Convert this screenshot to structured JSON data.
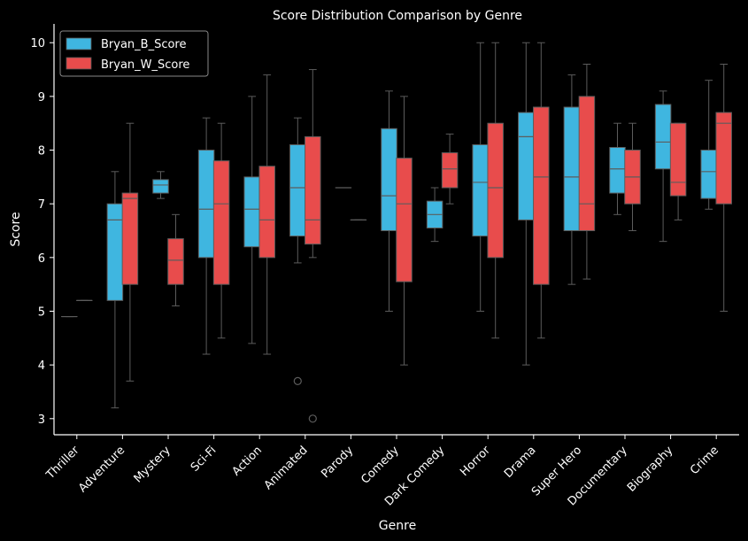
{
  "chart_data": {
    "type": "box",
    "title": "Score Distribution Comparison by Genre",
    "xlabel": "Genre",
    "ylabel": "Score",
    "ylim": [
      2.7,
      10.35
    ],
    "yticks": [
      3,
      4,
      5,
      6,
      7,
      8,
      9,
      10
    ],
    "grid": false,
    "legend_position": "top-left",
    "categories": [
      "Thriller",
      "Adventure",
      "Mystery",
      "Sci-Fi",
      "Action",
      "Animated",
      "Parody",
      "Comedy",
      "Dark Comedy",
      "Horror",
      "Drama",
      "Super Hero",
      "Documentary",
      "Biography",
      "Crime"
    ],
    "series": [
      {
        "name": "Bryan_B_Score",
        "color": "#3fb6e0",
        "boxes": [
          {
            "min": 4.9,
            "q1": 4.9,
            "median": 4.9,
            "q3": 4.9,
            "max": 4.9,
            "outliers": []
          },
          {
            "min": 3.2,
            "q1": 5.2,
            "median": 6.7,
            "q3": 7.0,
            "max": 7.6,
            "outliers": []
          },
          {
            "min": 7.1,
            "q1": 7.2,
            "median": 7.35,
            "q3": 7.45,
            "max": 7.6,
            "outliers": []
          },
          {
            "min": 4.2,
            "q1": 6.0,
            "median": 6.9,
            "q3": 8.0,
            "max": 8.6,
            "outliers": []
          },
          {
            "min": 4.4,
            "q1": 6.2,
            "median": 6.9,
            "q3": 7.5,
            "max": 9.0,
            "outliers": []
          },
          {
            "min": 5.9,
            "q1": 6.4,
            "median": 7.3,
            "q3": 8.1,
            "max": 8.6,
            "outliers": [
              3.7
            ]
          },
          {
            "min": 7.3,
            "q1": 7.3,
            "median": 7.3,
            "q3": 7.3,
            "max": 7.3,
            "outliers": []
          },
          {
            "min": 5.0,
            "q1": 6.5,
            "median": 7.15,
            "q3": 8.4,
            "max": 9.1,
            "outliers": []
          },
          {
            "min": 6.3,
            "q1": 6.55,
            "median": 6.8,
            "q3": 7.05,
            "max": 7.3,
            "outliers": []
          },
          {
            "min": 5.0,
            "q1": 6.4,
            "median": 7.4,
            "q3": 8.1,
            "max": 10.0,
            "outliers": []
          },
          {
            "min": 4.0,
            "q1": 6.7,
            "median": 8.25,
            "q3": 8.7,
            "max": 10.0,
            "outliers": []
          },
          {
            "min": 5.5,
            "q1": 6.5,
            "median": 7.5,
            "q3": 8.8,
            "max": 9.4,
            "outliers": []
          },
          {
            "min": 6.8,
            "q1": 7.2,
            "median": 7.65,
            "q3": 8.05,
            "max": 8.5,
            "outliers": []
          },
          {
            "min": 6.3,
            "q1": 7.65,
            "median": 8.15,
            "q3": 8.85,
            "max": 9.1,
            "outliers": []
          },
          {
            "min": 6.9,
            "q1": 7.1,
            "median": 7.6,
            "q3": 8.0,
            "max": 9.3,
            "outliers": []
          }
        ]
      },
      {
        "name": "Bryan_W_Score",
        "color": "#e84c4c",
        "boxes": [
          {
            "min": 5.2,
            "q1": 5.2,
            "median": 5.2,
            "q3": 5.2,
            "max": 5.2,
            "outliers": []
          },
          {
            "min": 3.7,
            "q1": 5.5,
            "median": 7.1,
            "q3": 7.2,
            "max": 8.5,
            "outliers": []
          },
          {
            "min": 5.1,
            "q1": 5.5,
            "median": 5.95,
            "q3": 6.35,
            "max": 6.8,
            "outliers": []
          },
          {
            "min": 4.5,
            "q1": 5.5,
            "median": 7.0,
            "q3": 7.8,
            "max": 8.5,
            "outliers": []
          },
          {
            "min": 4.2,
            "q1": 6.0,
            "median": 6.7,
            "q3": 7.7,
            "max": 9.4,
            "outliers": []
          },
          {
            "min": 6.0,
            "q1": 6.25,
            "median": 6.7,
            "q3": 8.25,
            "max": 9.5,
            "outliers": [
              3.0
            ]
          },
          {
            "min": 6.7,
            "q1": 6.7,
            "median": 6.7,
            "q3": 6.7,
            "max": 6.7,
            "outliers": []
          },
          {
            "min": 4.0,
            "q1": 5.55,
            "median": 7.0,
            "q3": 7.85,
            "max": 9.0,
            "outliers": []
          },
          {
            "min": 7.0,
            "q1": 7.3,
            "median": 7.65,
            "q3": 7.95,
            "max": 8.3,
            "outliers": []
          },
          {
            "min": 4.5,
            "q1": 6.0,
            "median": 7.3,
            "q3": 8.5,
            "max": 10.0,
            "outliers": []
          },
          {
            "min": 4.5,
            "q1": 5.5,
            "median": 7.5,
            "q3": 8.8,
            "max": 10.0,
            "outliers": []
          },
          {
            "min": 5.6,
            "q1": 6.5,
            "median": 7.0,
            "q3": 9.0,
            "max": 9.6,
            "outliers": []
          },
          {
            "min": 6.5,
            "q1": 7.0,
            "median": 7.5,
            "q3": 8.0,
            "max": 8.5,
            "outliers": []
          },
          {
            "min": 6.7,
            "q1": 7.15,
            "median": 7.4,
            "q3": 8.5,
            "max": 8.5,
            "outliers": []
          },
          {
            "min": 5.0,
            "q1": 7.0,
            "median": 8.5,
            "q3": 8.7,
            "max": 9.6,
            "outliers": []
          }
        ]
      }
    ]
  }
}
